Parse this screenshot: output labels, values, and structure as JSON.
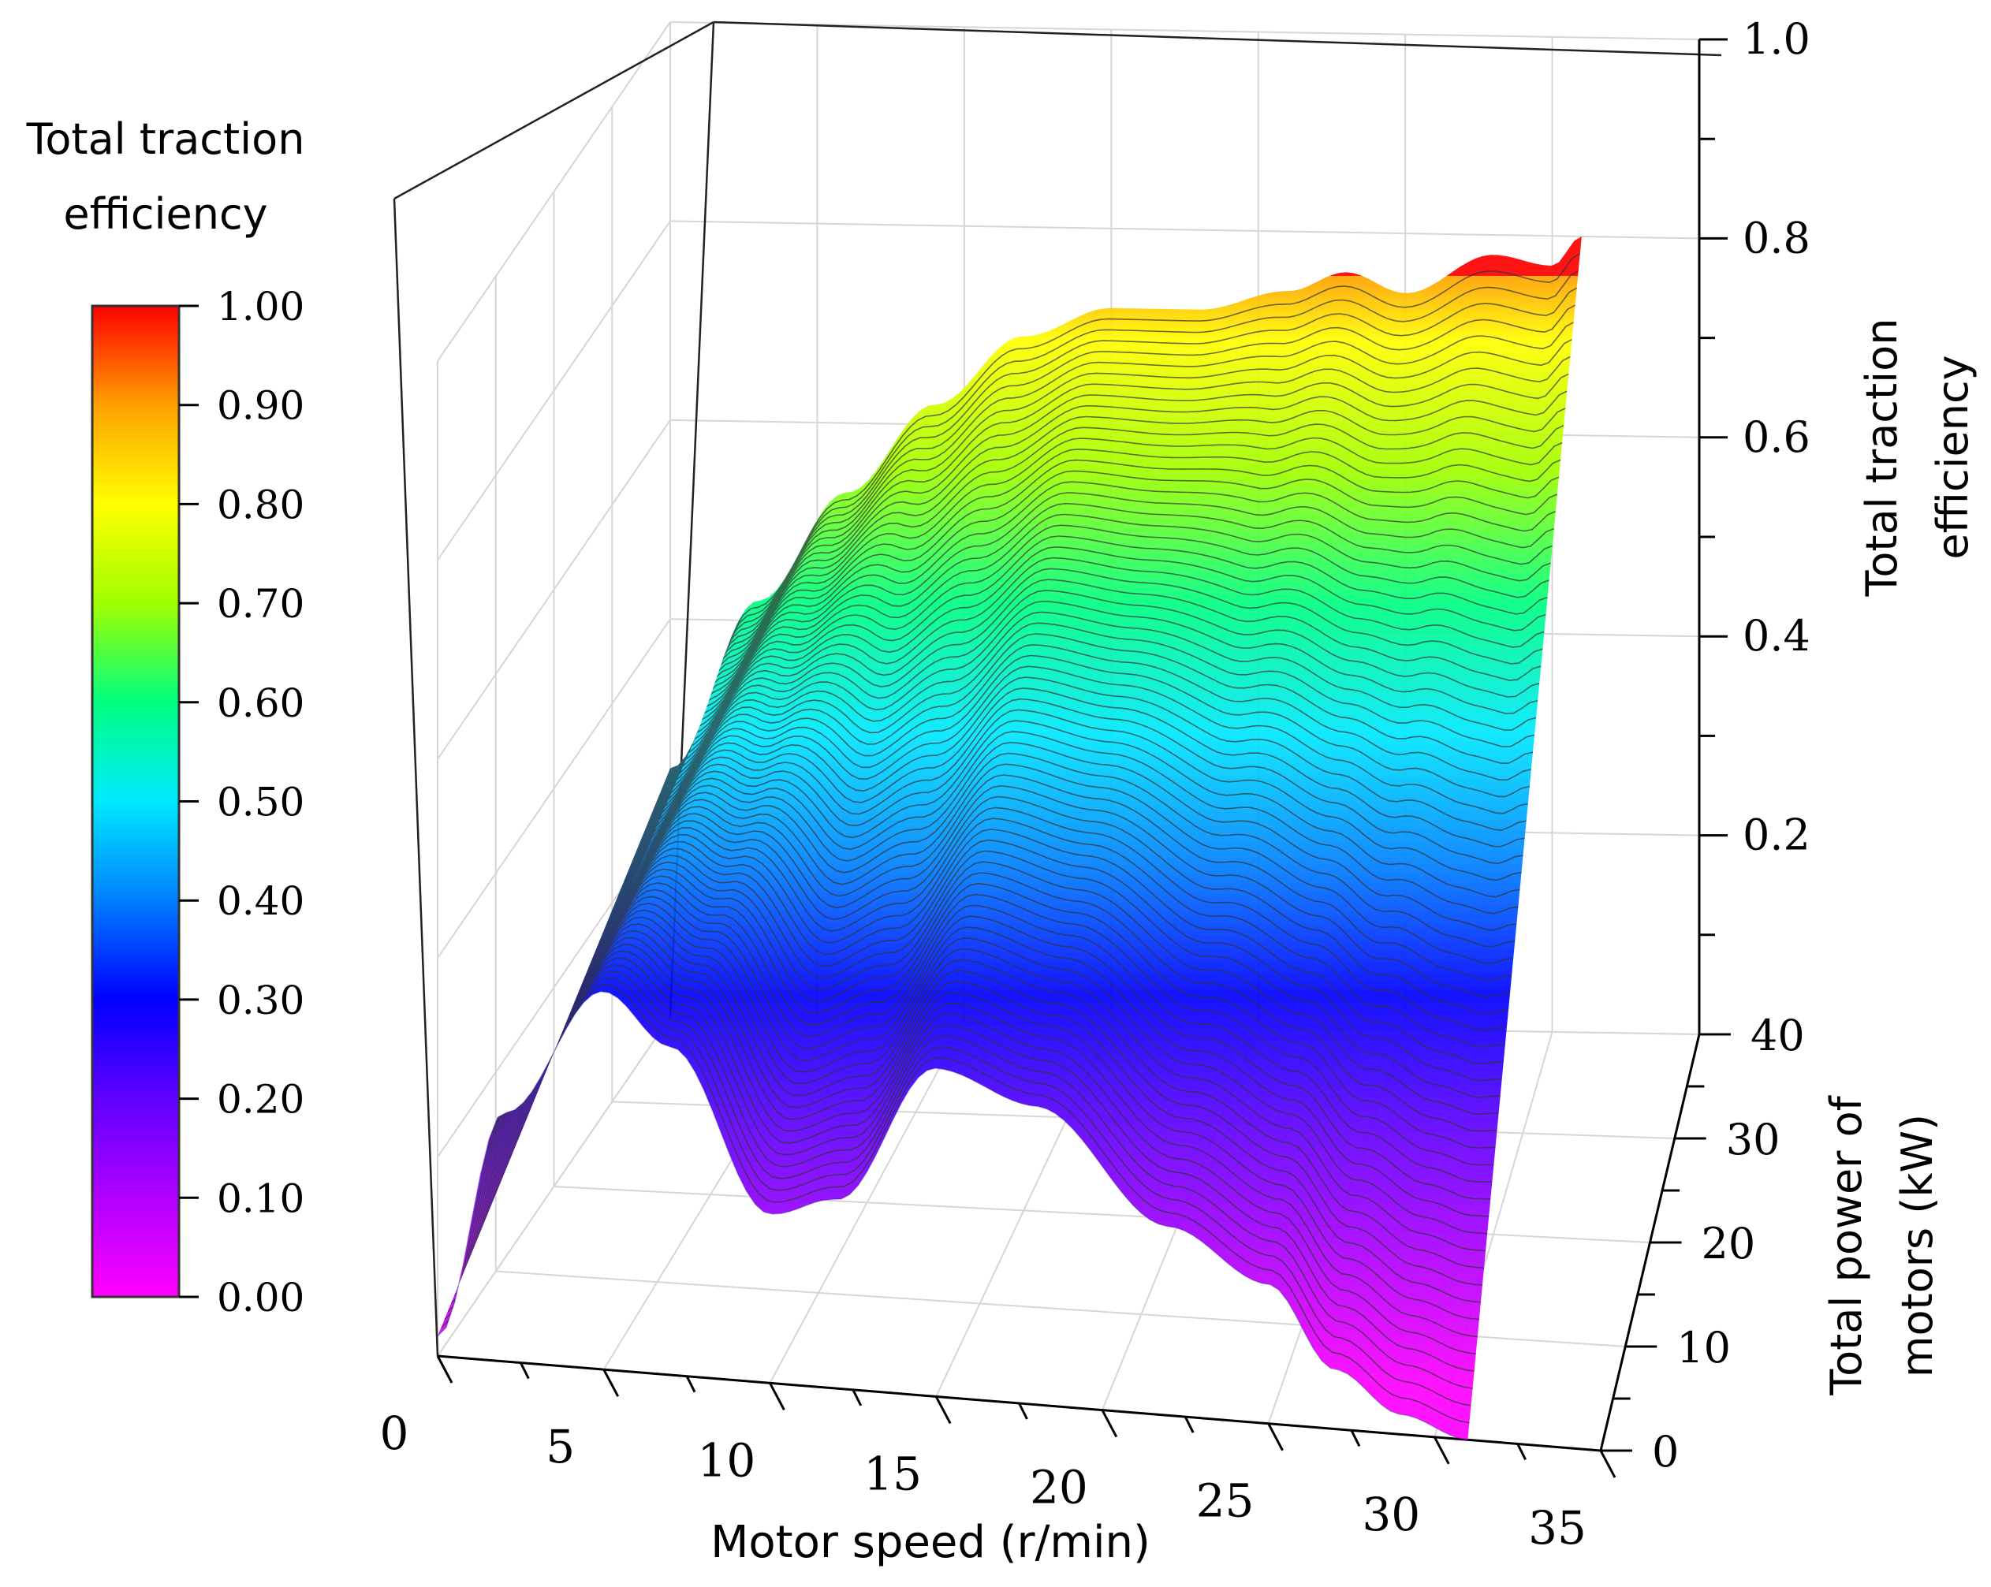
{
  "chart_data": {
    "type": "surface3d",
    "title": "",
    "colorbar": {
      "title_lines": [
        "Total traction",
        "efficiency"
      ],
      "ticks": [
        "0.00",
        "0.10",
        "0.20",
        "0.30",
        "0.40",
        "0.50",
        "0.60",
        "0.70",
        "0.80",
        "0.90",
        "1.00"
      ],
      "range": [
        0,
        1
      ],
      "colors": [
        "#ff00ff",
        "#b000ff",
        "#6000ff",
        "#0000ff",
        "#0080ff",
        "#00e8ff",
        "#00ff80",
        "#a0ff00",
        "#ffff00",
        "#ffa000",
        "#ff0000"
      ]
    },
    "x_axis": {
      "label": "Motor speed (r/min)",
      "ticks": [
        "0",
        "5",
        "10",
        "15",
        "20",
        "25",
        "30",
        "35"
      ],
      "range": [
        0,
        35
      ]
    },
    "y_axis": {
      "label_lines": [
        "Total power of",
        "motors (kW)"
      ],
      "ticks": [
        "0",
        "10",
        "20",
        "30",
        "40"
      ],
      "range": [
        0,
        40
      ]
    },
    "z_axis": {
      "label_lines": [
        "Total traction",
        "efficiency"
      ],
      "ticks": [
        "0.2",
        "0.4",
        "0.6",
        "0.8",
        "1.0"
      ],
      "range": [
        0,
        1.0
      ]
    },
    "surface_front_edge": {
      "x": [
        0,
        2,
        5,
        7,
        10,
        12,
        15,
        18,
        22,
        25,
        27,
        29,
        31
      ],
      "z": [
        0.02,
        0.25,
        0.38,
        0.33,
        0.17,
        0.19,
        0.33,
        0.3,
        0.19,
        0.14,
        0.06,
        0.02,
        0.0
      ]
    },
    "surface_back_edge": {
      "x": [
        0,
        3,
        6,
        9,
        12,
        15,
        18,
        21,
        23,
        25,
        28,
        30,
        31
      ],
      "z": [
        0.25,
        0.42,
        0.53,
        0.62,
        0.69,
        0.72,
        0.72,
        0.74,
        0.76,
        0.74,
        0.78,
        0.77,
        0.8
      ]
    }
  }
}
